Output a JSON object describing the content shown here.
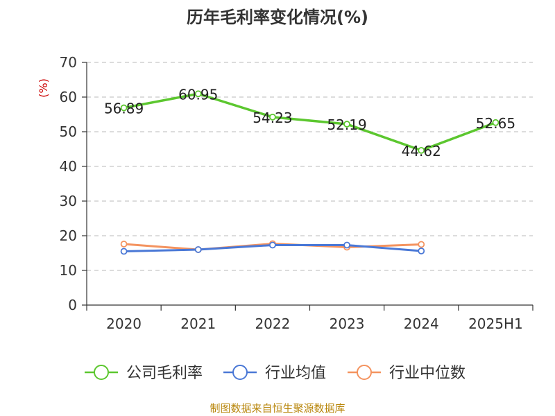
{
  "chart_data": {
    "type": "line",
    "title": "历年毛利率变化情况(%)",
    "ylabel": "(%)",
    "xlabel": "",
    "categories": [
      "2020",
      "2021",
      "2022",
      "2023",
      "2024",
      "2025H1"
    ],
    "ylim": [
      0,
      70
    ],
    "yticks": [
      0,
      10,
      20,
      30,
      40,
      50,
      60,
      70
    ],
    "grid": true,
    "legend_position": "bottom",
    "series": [
      {
        "name": "公司毛利率",
        "color": "#5cc72f",
        "values": [
          56.89,
          60.95,
          54.23,
          52.19,
          44.62,
          52.65
        ],
        "labels": [
          "56.89",
          "60.95",
          "54.23",
          "52.19",
          "44.62",
          "52.65"
        ]
      },
      {
        "name": "行业均值",
        "color": "#4a78d6",
        "values": [
          15.5,
          16.0,
          17.3,
          17.3,
          15.6,
          null
        ]
      },
      {
        "name": "行业中位数",
        "color": "#f4935f",
        "values": [
          17.6,
          16.0,
          17.7,
          16.7,
          17.5,
          null
        ]
      }
    ]
  },
  "footer": {
    "source": "制图数据来自恒生聚源数据库"
  }
}
